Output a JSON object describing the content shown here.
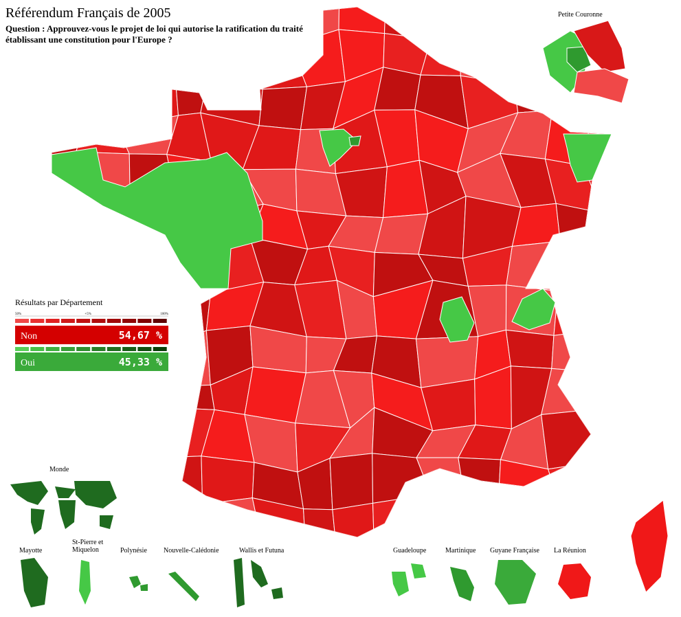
{
  "header": {
    "title": "Référendum Français de 2005",
    "question_lines": [
      "Question : Approuvez-vous le projet de loi qui autorise la ratification du traité",
      "établissant une constitution pour l'Europe ?"
    ]
  },
  "legend": {
    "title": "Résultats par Département",
    "scale_labels": [
      "50%",
      "+5%",
      "100%"
    ],
    "results": [
      {
        "label": "Non",
        "value": "54,67 %"
      },
      {
        "label": "Oui",
        "value": "45,33 %"
      }
    ]
  },
  "insets": {
    "petite_couronne": "Petite Couronne",
    "monde": "Monde",
    "territories": [
      "Mayotte",
      "St-Pierre et Miquelon",
      "Polynésie",
      "Nouvelle-Calédonie",
      "Wallis et Futuna",
      "Guadeloupe",
      "Martinique",
      "Guyane Française",
      "La Réunion"
    ]
  }
}
